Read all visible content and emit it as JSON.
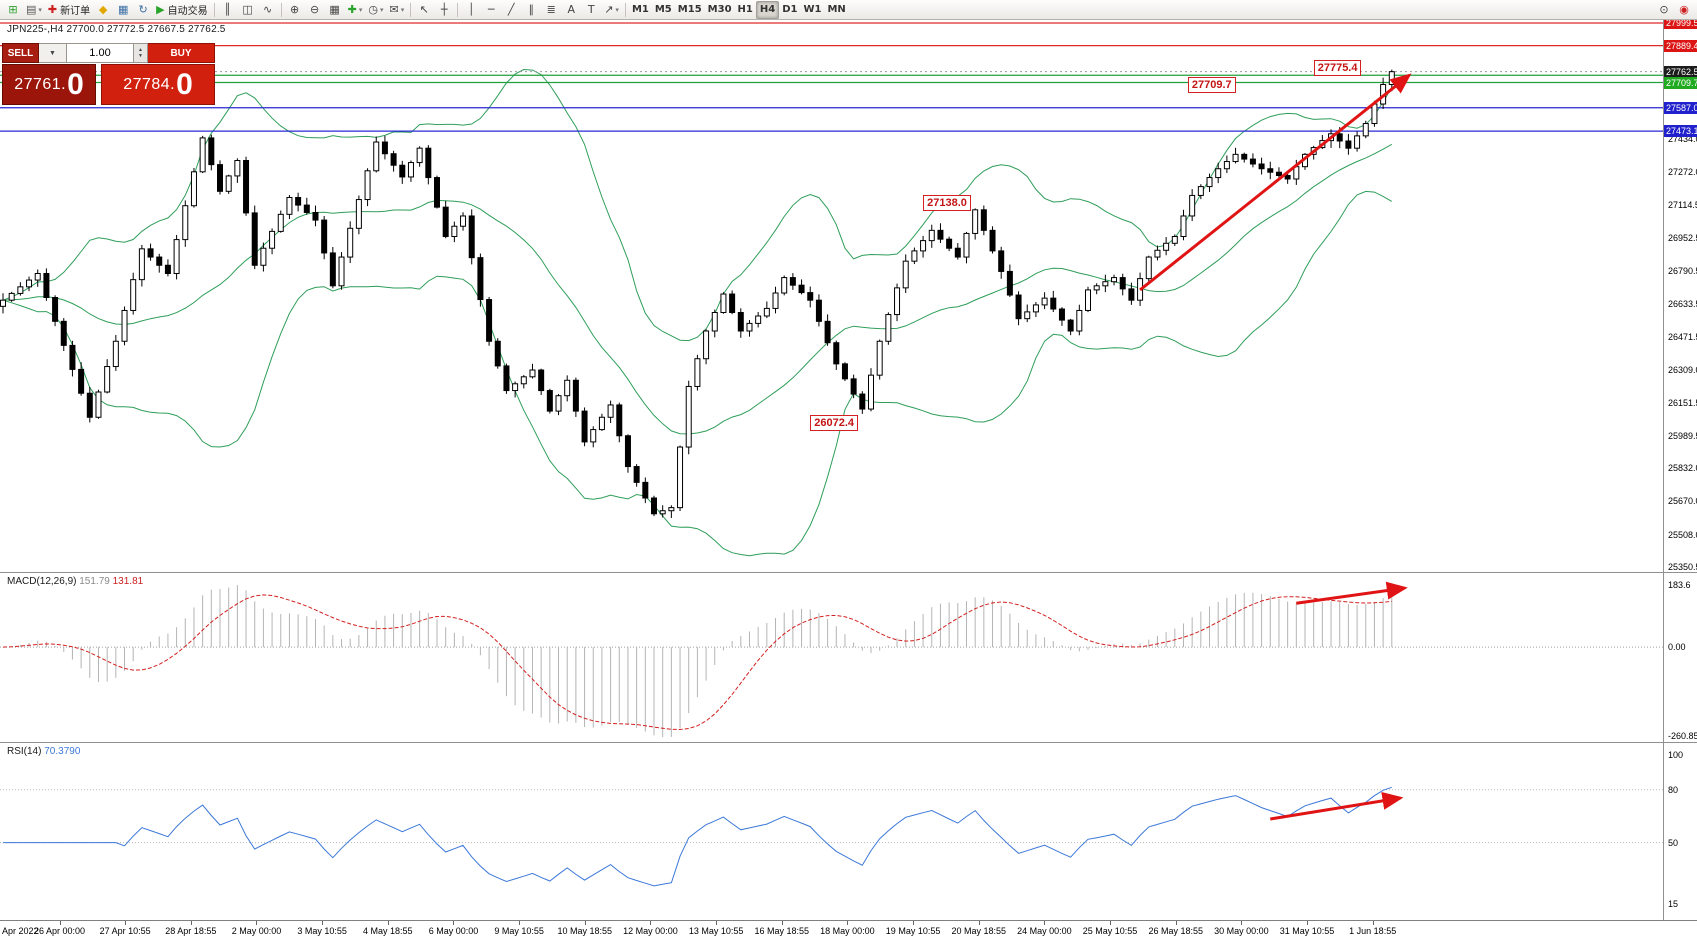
{
  "toolbar": {
    "items": [
      {
        "name": "new-chart",
        "glyph": "⊞",
        "color": "#2da12d",
        "type": "icon"
      },
      {
        "name": "profiles",
        "glyph": "▤",
        "color": "#555",
        "type": "icon",
        "dropdown": true
      },
      {
        "name": "new-order",
        "glyph": "✚",
        "color": "#cc2020",
        "label": "新订单",
        "type": "button"
      },
      {
        "name": "metaeditor",
        "glyph": "◆",
        "color": "#e0a800",
        "type": "icon"
      },
      {
        "name": "market-watch",
        "glyph": "▦",
        "color": "#3a6ea5",
        "type": "icon"
      },
      {
        "name": "refresh",
        "glyph": "↻",
        "color": "#3a6ea5",
        "type": "icon"
      },
      {
        "name": "auto-trading",
        "glyph": "▶",
        "color": "#28a428",
        "label": "自动交易",
        "type": "button"
      },
      {
        "type": "sep"
      },
      {
        "name": "bar-chart-mode",
        "glyph": "║",
        "color": "#444",
        "type": "icon"
      },
      {
        "name": "candlestick-mode",
        "glyph": "◫",
        "color": "#444",
        "type": "icon"
      },
      {
        "name": "line-chart-mode",
        "glyph": "∿",
        "color": "#444",
        "type": "icon"
      },
      {
        "type": "sep"
      },
      {
        "name": "zoom-in",
        "glyph": "⊕",
        "color": "#444",
        "type": "icon"
      },
      {
        "name": "zoom-out",
        "glyph": "⊖",
        "color": "#444",
        "type": "icon"
      },
      {
        "name": "tile-windows",
        "glyph": "▦",
        "color": "#444",
        "type": "icon"
      },
      {
        "name": "add-indicator",
        "glyph": "✚",
        "color": "#28a428",
        "type": "icon",
        "dropdown": true
      },
      {
        "name": "periods",
        "glyph": "◷",
        "color": "#444",
        "type": "icon",
        "dropdown": true
      },
      {
        "name": "templates",
        "glyph": "✉",
        "color": "#444",
        "type": "icon",
        "dropdown": true
      },
      {
        "type": "sep"
      },
      {
        "name": "cursor",
        "glyph": "↖",
        "color": "#444",
        "type": "icon"
      },
      {
        "name": "crosshair",
        "glyph": "┼",
        "color": "#444",
        "type": "icon"
      },
      {
        "type": "sep"
      },
      {
        "name": "vertical-line",
        "glyph": "│",
        "color": "#444",
        "type": "icon"
      },
      {
        "name": "horizontal-line",
        "glyph": "─",
        "color": "#444",
        "type": "icon"
      },
      {
        "name": "trendline",
        "glyph": "╱",
        "color": "#444",
        "type": "icon"
      },
      {
        "name": "equidistant-channel",
        "glyph": "∥",
        "color": "#444",
        "type": "icon"
      },
      {
        "name": "fibonacci",
        "glyph": "≣",
        "color": "#444",
        "type": "icon"
      },
      {
        "name": "text",
        "glyph": "A",
        "color": "#444",
        "type": "icon"
      },
      {
        "name": "text-label",
        "glyph": "T",
        "color": "#444",
        "type": "icon"
      },
      {
        "name": "arrows-objects",
        "glyph": "↗",
        "color": "#444",
        "type": "icon",
        "dropdown": true
      },
      {
        "type": "sep"
      },
      {
        "name": "tf-m1",
        "label": "M1",
        "type": "tf"
      },
      {
        "name": "tf-m5",
        "label": "M5",
        "type": "tf"
      },
      {
        "name": "tf-m15",
        "label": "M15",
        "type": "tf"
      },
      {
        "name": "tf-m30",
        "label": "M30",
        "type": "tf"
      },
      {
        "name": "tf-h1",
        "label": "H1",
        "type": "tf"
      },
      {
        "name": "tf-h4",
        "label": "H4",
        "type": "tf",
        "active": true
      },
      {
        "name": "tf-d1",
        "label": "D1",
        "type": "tf"
      },
      {
        "name": "tf-w1",
        "label": "W1",
        "type": "tf"
      },
      {
        "name": "tf-mn",
        "label": "MN",
        "type": "tf"
      },
      {
        "name": "search",
        "glyph": "⊙",
        "color": "#444",
        "type": "icon",
        "right": true
      },
      {
        "name": "community",
        "glyph": "◉",
        "color": "#cc2020",
        "type": "icon"
      }
    ]
  },
  "chart": {
    "header": "JPN225-,H4 27700.0 27772.5 27667.5 27762.5"
  },
  "trade_panel": {
    "sell_label": "SELL",
    "buy_label": "BUY",
    "volume": "1.00",
    "bid": "27761.",
    "bid_big": "0",
    "ask": "27784.",
    "ask_big": "0"
  },
  "price_scale": {
    "ticks": [
      27434.0,
      27272.0,
      27114.5,
      26952.5,
      26790.5,
      26633.5,
      26471.5,
      26309.0,
      26151.5,
      25989.5,
      25832.0,
      25670.0,
      25508.0,
      25350.5
    ],
    "markers": [
      {
        "price": 27999.5,
        "label": "27999.5",
        "bg": "#dc1414"
      },
      {
        "price": 27889.4,
        "label": "27889.4",
        "bg": "#dc1414"
      },
      {
        "price": 27762.5,
        "label": "27762.5",
        "bg": "#1c1c1c"
      },
      {
        "price": 27709.7,
        "label": "27709.7",
        "bg": "#1faa1f"
      },
      {
        "price": 27587.0,
        "label": "27587.0",
        "bg": "#2020cc"
      },
      {
        "price": 27473.1,
        "label": "27473.1",
        "bg": "#2020cc"
      }
    ]
  },
  "macd": {
    "name": "MACD(12,26,9)",
    "value": "151.79",
    "signal": "131.81",
    "scale": {
      "top": "183.6",
      "zero": "0.00",
      "bottom": "-260.85"
    }
  },
  "rsi": {
    "name": "RSI(14)",
    "value": "70.3790",
    "scale": [
      {
        "label": "100",
        "value": 100
      },
      {
        "label": "80",
        "value": 80
      },
      {
        "label": "50",
        "value": 50
      },
      {
        "label": "15",
        "value": 15
      }
    ]
  },
  "time_axis": {
    "labels": [
      "Apr 2022",
      "26 Apr 00:00",
      "27 Apr 10:55",
      "28 Apr 18:55",
      "2 May 00:00",
      "3 May 10:55",
      "4 May 18:55",
      "6 May 00:00",
      "9 May 10:55",
      "10 May 18:55",
      "12 May 00:00",
      "13 May 10:55",
      "16 May 18:55",
      "18 May 00:00",
      "19 May 10:55",
      "20 May 18:55",
      "24 May 00:00",
      "25 May 10:55",
      "26 May 18:55",
      "30 May 00:00",
      "31 May 10:55",
      "1 Jun 18:55"
    ]
  },
  "chart_data": {
    "type": "candlestick",
    "symbol": "JPN225-",
    "timeframe": "H4",
    "title": "JPN225-,H4",
    "last_ohlc": {
      "open": 27700.0,
      "high": 27772.5,
      "low": 27667.5,
      "close": 27762.5
    },
    "closes": [
      26650,
      26683,
      26715,
      26748,
      26780,
      26663,
      26547,
      26430,
      26313,
      26197,
      26080,
      26203,
      26327,
      26450,
      26600,
      26750,
      26900,
      26860,
      26820,
      26780,
      26945,
      27110,
      27275,
      27440,
      27310,
      27180,
      27255,
      27330,
      27075,
      26820,
      26903,
      26985,
      27068,
      27150,
      27113,
      27077,
      27040,
      26880,
      26720,
      26860,
      27000,
      27140,
      27280,
      27420,
      27363,
      27307,
      27250,
      27320,
      27390,
      27247,
      27103,
      26960,
      27010,
      27060,
      26857,
      26653,
      26450,
      26330,
      26210,
      26243,
      26277,
      26310,
      26210,
      26110,
      26185,
      26260,
      26110,
      25960,
      26020,
      26080,
      26140,
      25990,
      25840,
      25763,
      25687,
      25610,
      25625,
      25640,
      25935,
      26230,
      26365,
      26500,
      26590,
      26680,
      26590,
      26500,
      26537,
      26573,
      26610,
      26685,
      26760,
      26723,
      26687,
      26650,
      26547,
      26443,
      26340,
      26267,
      26193,
      26120,
      26285,
      26450,
      26580,
      26710,
      26840,
      26890,
      26940,
      26990,
      26947,
      26903,
      26860,
      26975,
      27090,
      26990,
      26890,
      26790,
      26675,
      26560,
      26593,
      26627,
      26660,
      26607,
      26553,
      26500,
      26600,
      26700,
      26720,
      26740,
      26760,
      26705,
      26650,
      26755,
      26860,
      26893,
      26927,
      26960,
      27060,
      27160,
      27203,
      27247,
      27290,
      27325,
      27360,
      27337,
      27313,
      27290,
      27273,
      27257,
      27240,
      27300,
      27360,
      27393,
      27427,
      27460,
      27425,
      27390,
      27450,
      27510,
      27605,
      27700,
      27762.5
    ],
    "hlines": [
      {
        "price": 27999.5,
        "color": "#e02828"
      },
      {
        "price": 27889.4,
        "color": "#e02828"
      },
      {
        "price": 27745.0,
        "color": "#22a03c"
      },
      {
        "price": 27709.7,
        "color": "#22a03c"
      },
      {
        "price": 27587.0,
        "color": "#2828d4"
      },
      {
        "price": 27473.1,
        "color": "#2828d4"
      }
    ],
    "current_price": {
      "value": 27762.5
    },
    "annotations": [
      {
        "text": "27709.7",
        "index": 139.5,
        "price": 27700
      },
      {
        "text": "27775.4",
        "index": 154,
        "price": 27782
      },
      {
        "text": "27138.0",
        "index": 109,
        "price": 27125
      },
      {
        "text": "26072.4",
        "index": 96,
        "price": 26050
      }
    ],
    "arrows": [
      {
        "panel": "main",
        "i1": 131,
        "price1": 26700,
        "i2": 162,
        "price2": 27745
      },
      {
        "panel": "macd",
        "i1": 149,
        "f1": 0.12,
        "i2": 161.5,
        "f2": 0.02
      },
      {
        "panel": "rsi",
        "i1": 146,
        "f1": 0.42,
        "i2": 161,
        "f2": 0.29
      }
    ],
    "indicators": [
      {
        "name": "Bollinger Bands",
        "period": 20,
        "deviation": 2,
        "color": "#2f9e5a"
      },
      {
        "name": "MACD",
        "fast": 12,
        "slow": 26,
        "signal_period": 9,
        "value": 151.79,
        "signal": 131.81
      },
      {
        "name": "RSI",
        "period": 14,
        "value": 70.379
      }
    ]
  }
}
